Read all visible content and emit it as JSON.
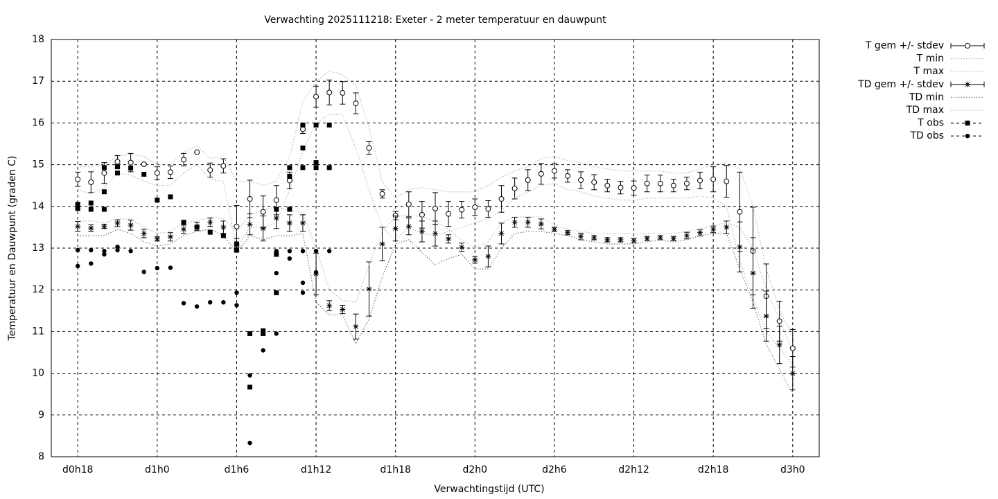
{
  "chart_data": {
    "type": "errorbar-line",
    "title": "Verwachting 2025111218: Exeter - 2 meter temperatuur en dauwpunt",
    "xlabel": "Verwachtingstijd (UTC)",
    "ylabel": "Temperatuur en Dauwpunt (graden C)",
    "xlim": [
      16,
      74
    ],
    "ylim": [
      8,
      18
    ],
    "xticks": [
      {
        "value": 18,
        "label": "d0h18"
      },
      {
        "value": 24,
        "label": "d1h0"
      },
      {
        "value": 30,
        "label": "d1h6"
      },
      {
        "value": 36,
        "label": "d1h12"
      },
      {
        "value": 42,
        "label": "d1h18"
      },
      {
        "value": 48,
        "label": "d2h0"
      },
      {
        "value": 54,
        "label": "d2h6"
      },
      {
        "value": 60,
        "label": "d2h12"
      },
      {
        "value": 66,
        "label": "d2h18"
      },
      {
        "value": 72,
        "label": "d3h0"
      }
    ],
    "yticks": [
      8,
      9,
      10,
      11,
      12,
      13,
      14,
      15,
      16,
      17,
      18
    ],
    "grid": true,
    "legend": "outside-right",
    "x": [
      18,
      19,
      20,
      21,
      22,
      23,
      24,
      25,
      26,
      27,
      28,
      29,
      30,
      31,
      32,
      33,
      34,
      35,
      36,
      37,
      38,
      39,
      40,
      41,
      42,
      43,
      44,
      45,
      46,
      47,
      48,
      49,
      50,
      51,
      52,
      53,
      54,
      55,
      56,
      57,
      58,
      59,
      60,
      61,
      62,
      63,
      64,
      65,
      66,
      67,
      68,
      69,
      70,
      71,
      72
    ],
    "series": [
      {
        "name": "T gem +/- stdev",
        "color": "#000000",
        "marker": "circle",
        "errorbars": true,
        "line": "none",
        "values": [
          14.65,
          14.58,
          14.8,
          15.07,
          15.05,
          15.01,
          14.8,
          14.82,
          15.12,
          15.3,
          14.87,
          14.97,
          13.52,
          14.18,
          13.87,
          14.15,
          14.62,
          15.85,
          16.63,
          16.73,
          16.72,
          16.47,
          15.4,
          14.3,
          13.78,
          14.05,
          13.8,
          13.95,
          13.82,
          13.92,
          13.98,
          13.94,
          14.18,
          14.43,
          14.63,
          14.78,
          14.85,
          14.73,
          14.63,
          14.58,
          14.5,
          14.45,
          14.44,
          14.55,
          14.55,
          14.5,
          14.55,
          14.62,
          14.65,
          14.6,
          13.87,
          12.93,
          11.85,
          11.25,
          10.6
        ],
        "errors": [
          0.17,
          0.25,
          0.25,
          0.15,
          0.22,
          0,
          0.15,
          0.15,
          0.15,
          0,
          0.17,
          0.17,
          0.5,
          0.45,
          0.38,
          0.35,
          0.2,
          0.1,
          0.25,
          0.3,
          0.27,
          0.25,
          0.15,
          0.1,
          0.1,
          0.3,
          0.32,
          0.38,
          0.3,
          0.2,
          0.2,
          0.2,
          0.32,
          0.25,
          0.25,
          0.25,
          0.17,
          0.15,
          0.2,
          0.18,
          0.15,
          0.15,
          0.17,
          0.2,
          0.2,
          0.15,
          0.15,
          0.2,
          0.3,
          0.38,
          0.95,
          1.05,
          0.77,
          0.48,
          0.45
        ]
      },
      {
        "name": "T min",
        "color": "#aaaaaa",
        "marker": "none",
        "errorbars": false,
        "line": "dotted",
        "values": [
          14.4,
          14.3,
          14.45,
          14.8,
          14.75,
          14.6,
          14.5,
          14.5,
          14.8,
          15.0,
          14.65,
          14.6,
          13.0,
          13.5,
          13.5,
          13.6,
          14.4,
          15.3,
          16.0,
          16.2,
          16.2,
          15.4,
          14.4,
          13.5,
          13.2,
          13.5,
          13.35,
          13.3,
          13.4,
          13.5,
          13.6,
          13.7,
          13.9,
          14.2,
          14.35,
          14.5,
          14.55,
          14.4,
          14.35,
          14.25,
          14.2,
          14.15,
          14.15,
          14.2,
          14.2,
          14.2,
          14.2,
          14.25,
          14.2,
          14.0,
          12.7,
          11.8,
          11.0,
          10.6,
          10.2
        ]
      },
      {
        "name": "T max",
        "color": "#aaaaaa",
        "marker": "none",
        "errorbars": false,
        "line": "dotted",
        "values": [
          14.95,
          14.95,
          15.0,
          15.2,
          15.25,
          15.2,
          15.0,
          15.0,
          15.3,
          15.45,
          15.15,
          15.2,
          14.6,
          14.6,
          14.5,
          14.6,
          15.2,
          16.5,
          17.0,
          17.25,
          17.15,
          16.9,
          15.9,
          14.6,
          14.2,
          14.4,
          14.45,
          14.4,
          14.35,
          14.35,
          14.35,
          14.5,
          14.7,
          14.85,
          14.95,
          15.15,
          15.2,
          15.1,
          15.05,
          14.95,
          14.9,
          14.85,
          14.85,
          14.85,
          14.85,
          14.8,
          14.8,
          14.9,
          15.0,
          15.05,
          14.9,
          14.0,
          12.5,
          11.5,
          10.9
        ]
      },
      {
        "name": "TD gem +/- stdev",
        "color": "#000000",
        "marker": "star",
        "errorbars": true,
        "line": "none",
        "values": [
          13.52,
          13.48,
          13.52,
          13.6,
          13.55,
          13.35,
          13.22,
          13.27,
          13.45,
          13.52,
          13.62,
          13.5,
          13.08,
          13.57,
          13.47,
          13.72,
          13.6,
          13.6,
          12.38,
          11.62,
          11.53,
          11.12,
          12.02,
          13.1,
          13.47,
          13.52,
          13.4,
          13.35,
          13.22,
          13.02,
          12.72,
          12.8,
          13.35,
          13.62,
          13.62,
          13.58,
          13.45,
          13.37,
          13.28,
          13.25,
          13.2,
          13.2,
          13.18,
          13.23,
          13.25,
          13.23,
          13.3,
          13.37,
          13.45,
          13.5,
          13.03,
          12.4,
          11.37,
          10.68,
          10.0
        ],
        "errors": [
          0.12,
          0.08,
          0.05,
          0.08,
          0.12,
          0.1,
          0.05,
          0.1,
          0.1,
          0.1,
          0.1,
          0.15,
          0.15,
          0.25,
          0.3,
          0.25,
          0.2,
          0.2,
          0.5,
          0.12,
          0.1,
          0.3,
          0.65,
          0.4,
          0.3,
          0.2,
          0.25,
          0.3,
          0.1,
          0.1,
          0.08,
          0.25,
          0.25,
          0.12,
          0.12,
          0.12,
          0.05,
          0.05,
          0.08,
          0.05,
          0.05,
          0.05,
          0.05,
          0.05,
          0.05,
          0.05,
          0.08,
          0.08,
          0.08,
          0.15,
          0.6,
          0.85,
          0.6,
          0.45,
          0.4
        ]
      },
      {
        "name": "TD min",
        "color": "#555555",
        "marker": "none",
        "errorbars": false,
        "line": "dotted",
        "values": [
          13.3,
          13.3,
          13.3,
          13.45,
          13.35,
          13.15,
          13.05,
          13.1,
          13.3,
          13.4,
          13.45,
          13.3,
          12.9,
          13.3,
          13.2,
          13.3,
          13.3,
          13.35,
          11.7,
          11.4,
          11.4,
          10.7,
          11.3,
          12.3,
          13.1,
          13.2,
          12.9,
          12.6,
          12.75,
          12.85,
          12.5,
          12.5,
          13.0,
          13.35,
          13.4,
          13.4,
          13.35,
          13.3,
          13.2,
          13.15,
          13.1,
          13.1,
          13.1,
          13.15,
          13.2,
          13.15,
          13.2,
          13.3,
          13.35,
          13.35,
          12.5,
          11.7,
          10.7,
          10.1,
          9.5
        ]
      },
      {
        "name": "TD max",
        "color": "#aaaaaa",
        "marker": "none",
        "errorbars": false,
        "line": "dotted",
        "values": [
          13.65,
          13.65,
          13.6,
          13.7,
          13.7,
          13.5,
          13.35,
          13.4,
          13.6,
          13.65,
          13.75,
          13.7,
          13.4,
          13.8,
          13.9,
          14.0,
          13.9,
          13.85,
          13.0,
          12.0,
          11.75,
          11.7,
          12.6,
          13.4,
          13.75,
          13.8,
          13.75,
          13.65,
          13.45,
          13.2,
          13.0,
          13.15,
          13.6,
          13.75,
          13.75,
          13.75,
          13.55,
          13.45,
          13.4,
          13.35,
          13.35,
          13.35,
          13.35,
          13.35,
          13.35,
          13.35,
          13.4,
          13.45,
          13.55,
          13.6,
          13.5,
          13.0,
          12.0,
          11.3,
          10.5
        ]
      },
      {
        "name": "T obs",
        "color": "#000000",
        "marker": "square",
        "errorbars": false,
        "line": "none",
        "x": [
          18,
          18,
          19,
          19,
          20,
          20,
          20,
          21,
          21,
          22,
          23,
          24,
          25,
          26,
          27,
          28,
          29,
          30,
          30,
          31,
          31,
          32,
          32,
          33,
          33,
          33,
          34,
          34,
          34,
          35,
          35,
          35,
          36,
          36,
          36,
          37,
          37
        ],
        "values": [
          14.05,
          13.95,
          14.08,
          13.93,
          14.93,
          14.35,
          13.93,
          14.95,
          14.8,
          14.92,
          14.77,
          14.15,
          14.23,
          13.62,
          13.5,
          13.38,
          13.3,
          13.1,
          12.95,
          10.95,
          9.67,
          11.02,
          10.95,
          13.93,
          12.85,
          11.93,
          14.93,
          14.72,
          13.93,
          15.95,
          15.4,
          14.93,
          15.95,
          15.05,
          14.93,
          15.95,
          14.93
        ]
      },
      {
        "name": "TD obs",
        "color": "#000000",
        "marker": "dot",
        "errorbars": false,
        "line": "none",
        "x": [
          18,
          18,
          19,
          19,
          20,
          20,
          21,
          21,
          22,
          23,
          24,
          25,
          26,
          27,
          28,
          29,
          30,
          30,
          31,
          31,
          32,
          33,
          33,
          33,
          34,
          34,
          35,
          35,
          35,
          36,
          36,
          37
        ],
        "values": [
          12.95,
          12.57,
          12.95,
          12.63,
          12.93,
          12.85,
          13.03,
          12.95,
          12.93,
          12.43,
          12.52,
          12.53,
          11.68,
          11.6,
          11.7,
          11.7,
          11.93,
          11.63,
          9.95,
          8.33,
          10.55,
          12.93,
          12.4,
          10.95,
          12.93,
          12.75,
          12.93,
          12.17,
          11.93,
          12.93,
          12.42,
          12.93
        ]
      }
    ]
  }
}
